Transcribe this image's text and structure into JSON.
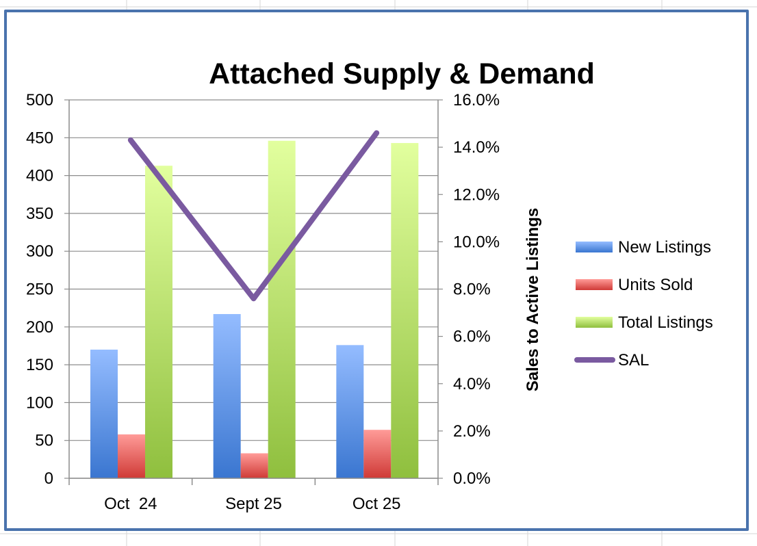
{
  "chart_data": {
    "type": "bar",
    "title": "Attached Supply & Demand",
    "categories": [
      "Oct  24",
      "Sept 25",
      "Oct 25"
    ],
    "series": [
      {
        "name": "New Listings",
        "kind": "bar",
        "axis": "left",
        "values": [
          170,
          217,
          176
        ],
        "color_top": "#94bcff",
        "color_bottom": "#3a76d0"
      },
      {
        "name": "Units Sold",
        "kind": "bar",
        "axis": "left",
        "values": [
          58,
          33,
          64
        ],
        "color_top": "#ff9b98",
        "color_bottom": "#cf3a36"
      },
      {
        "name": "Total Listings",
        "kind": "bar",
        "axis": "left",
        "values": [
          413,
          446,
          443
        ],
        "color_top": "#e2ff9e",
        "color_bottom": "#8fbf3e"
      },
      {
        "name": "SAL",
        "kind": "line",
        "axis": "right",
        "values": [
          14.3,
          7.6,
          14.6
        ],
        "color": "#7a5aa0"
      }
    ],
    "y_left": {
      "min": 0,
      "max": 500,
      "step": 50,
      "ticks": [
        "0",
        "50",
        "100",
        "150",
        "200",
        "250",
        "300",
        "350",
        "400",
        "450",
        "500"
      ]
    },
    "y_right": {
      "min": 0,
      "max": 16,
      "step": 2,
      "label": "Sales to Active Listings",
      "ticks": [
        "0.0%",
        "2.0%",
        "4.0%",
        "6.0%",
        "8.0%",
        "10.0%",
        "12.0%",
        "14.0%",
        "16.0%"
      ]
    },
    "grid": true,
    "legend": "right"
  }
}
